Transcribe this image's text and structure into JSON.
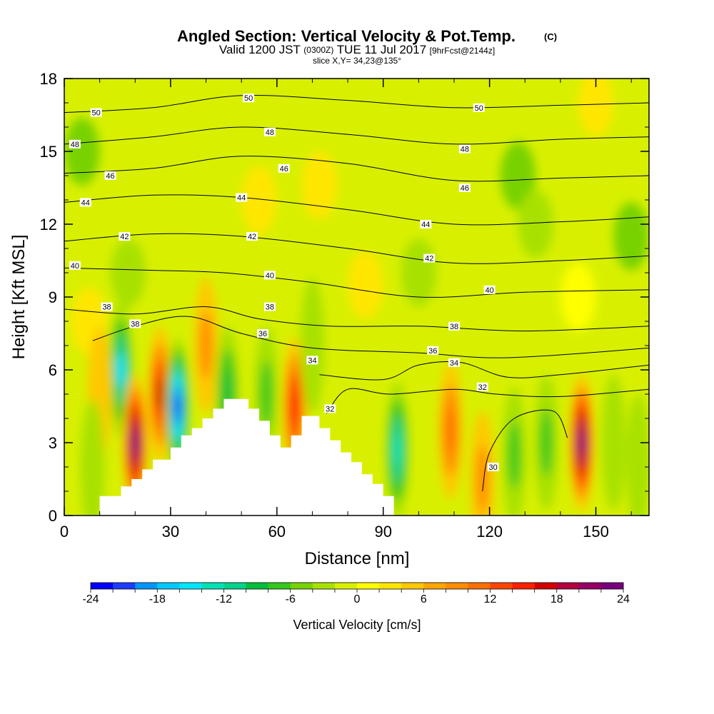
{
  "chart_data": {
    "type": "heatmap",
    "title": "Angled Section: Vertical Velocity & Pot.Temp.",
    "title_mark": "(C)",
    "subtitle": {
      "part1": "Valid 1200 JST",
      "part2": "(0300Z)",
      "part3": "TUE 11 Jul 2017",
      "part4": "[9hrFcst@2144z]"
    },
    "slice_label": "slice X,Y= 34,23@135°",
    "xlabel": "Distance [nm]",
    "ylabel": "Height [Kft MSL]",
    "xlim": [
      0,
      165
    ],
    "ylim": [
      0,
      18
    ],
    "x_ticks": [
      0,
      30,
      60,
      90,
      120,
      150
    ],
    "y_ticks": [
      0,
      3,
      6,
      9,
      12,
      15,
      18
    ],
    "colorbar": {
      "label": "Vertical Velocity [cm/s]",
      "ticks": [
        -24,
        -18,
        -12,
        -6,
        0,
        6,
        12,
        18,
        24
      ],
      "colors": [
        "#0000ff",
        "#1e3cff",
        "#0096ff",
        "#00c8ff",
        "#00e6ff",
        "#00e1b4",
        "#00d28c",
        "#00be3c",
        "#32c81e",
        "#78d200",
        "#a8e100",
        "#d8f000",
        "#ffff00",
        "#ffe600",
        "#ffc800",
        "#ffa500",
        "#ff8c00",
        "#ff6e00",
        "#ff4600",
        "#ff1e00",
        "#d20000",
        "#b4003c",
        "#960064",
        "#78007d"
      ]
    },
    "field": {
      "background_value": -1,
      "upper_values": [
        {
          "x": 5,
          "y": 15,
          "value": -6
        },
        {
          "x": 55,
          "y": 13,
          "value": 2
        },
        {
          "x": 72,
          "y": 13.6,
          "value": 2
        },
        {
          "x": 150,
          "y": 17,
          "value": 2
        },
        {
          "x": 128,
          "y": 14,
          "value": -5
        },
        {
          "x": 100,
          "y": 10,
          "value": -4
        },
        {
          "x": 133,
          "y": 12,
          "value": -4
        },
        {
          "x": 160,
          "y": 11.5,
          "value": -5
        },
        {
          "x": 18,
          "y": 10,
          "value": -3
        },
        {
          "x": 85,
          "y": 9.5,
          "value": 2
        },
        {
          "x": 145,
          "y": 9,
          "value": 1
        },
        {
          "x": 7,
          "y": 8,
          "value": 3
        }
      ],
      "cells": [
        {
          "x": 16,
          "y": 6,
          "value": -16
        },
        {
          "x": 20,
          "y": 3,
          "value": 24
        },
        {
          "x": 27,
          "y": 5,
          "value": 16
        },
        {
          "x": 32,
          "y": 4.5,
          "value": -22
        },
        {
          "x": 40,
          "y": 7,
          "value": 8
        },
        {
          "x": 46,
          "y": 5,
          "value": -10
        },
        {
          "x": 57,
          "y": 5,
          "value": -8
        },
        {
          "x": 65,
          "y": 4.5,
          "value": 14
        },
        {
          "x": 70,
          "y": 7,
          "value": -4
        },
        {
          "x": 94,
          "y": 2.7,
          "value": -14
        },
        {
          "x": 109,
          "y": 3.5,
          "value": 10
        },
        {
          "x": 127,
          "y": 2.5,
          "value": -9
        },
        {
          "x": 136,
          "y": 3,
          "value": -8
        },
        {
          "x": 146,
          "y": 3,
          "value": 24
        },
        {
          "x": 155,
          "y": 3,
          "value": -4
        },
        {
          "x": 10,
          "y": 5,
          "value": 4
        },
        {
          "x": 162,
          "y": 2.2,
          "value": -5
        },
        {
          "x": 8,
          "y": 2,
          "value": -5
        },
        {
          "x": 118,
          "y": 1.5,
          "value": 8
        }
      ]
    },
    "terrain": [
      [
        0,
        0
      ],
      [
        10,
        0
      ],
      [
        10,
        0.8
      ],
      [
        16,
        0.8
      ],
      [
        16,
        1.2
      ],
      [
        19,
        1.2
      ],
      [
        19,
        1.5
      ],
      [
        22,
        1.5
      ],
      [
        22,
        1.9
      ],
      [
        25,
        1.9
      ],
      [
        25,
        2.3
      ],
      [
        30,
        2.3
      ],
      [
        30,
        2.8
      ],
      [
        33,
        2.8
      ],
      [
        33,
        3.3
      ],
      [
        36,
        3.3
      ],
      [
        36,
        3.6
      ],
      [
        39,
        3.6
      ],
      [
        39,
        4.0
      ],
      [
        42,
        4.0
      ],
      [
        42,
        4.4
      ],
      [
        45,
        4.4
      ],
      [
        45,
        4.8
      ],
      [
        52,
        4.8
      ],
      [
        52,
        4.4
      ],
      [
        55,
        4.4
      ],
      [
        55,
        3.9
      ],
      [
        58,
        3.9
      ],
      [
        58,
        3.3
      ],
      [
        61,
        3.3
      ],
      [
        61,
        2.8
      ],
      [
        64,
        2.8
      ],
      [
        64,
        3.3
      ],
      [
        67,
        3.3
      ],
      [
        67,
        4.1
      ],
      [
        72,
        4.1
      ],
      [
        72,
        3.6
      ],
      [
        75,
        3.6
      ],
      [
        75,
        3.1
      ],
      [
        78,
        3.1
      ],
      [
        78,
        2.6
      ],
      [
        81,
        2.6
      ],
      [
        81,
        2.2
      ],
      [
        84,
        2.2
      ],
      [
        84,
        1.7
      ],
      [
        87,
        1.7
      ],
      [
        87,
        1.3
      ],
      [
        90,
        1.3
      ],
      [
        90,
        0.8
      ],
      [
        93,
        0.8
      ],
      [
        93,
        0
      ],
      [
        165,
        0
      ]
    ],
    "isentropes": [
      {
        "theta": 50,
        "points": [
          [
            0,
            16.6
          ],
          [
            25,
            16.8
          ],
          [
            50,
            17.3
          ],
          [
            80,
            17.1
          ],
          [
            110,
            16.8
          ],
          [
            140,
            16.9
          ],
          [
            165,
            17.0
          ]
        ]
      },
      {
        "theta": 48,
        "points": [
          [
            0,
            15.3
          ],
          [
            25,
            15.6
          ],
          [
            50,
            16.0
          ],
          [
            80,
            15.7
          ],
          [
            110,
            15.3
          ],
          [
            140,
            15.5
          ],
          [
            165,
            15.6
          ]
        ]
      },
      {
        "theta": 46,
        "points": [
          [
            0,
            14.1
          ],
          [
            25,
            14.3
          ],
          [
            50,
            14.8
          ],
          [
            80,
            14.5
          ],
          [
            110,
            13.8
          ],
          [
            140,
            13.9
          ],
          [
            165,
            14.0
          ]
        ]
      },
      {
        "theta": 44,
        "points": [
          [
            0,
            12.9
          ],
          [
            25,
            13.2
          ],
          [
            50,
            13.1
          ],
          [
            80,
            12.6
          ],
          [
            110,
            12.0
          ],
          [
            140,
            12.1
          ],
          [
            165,
            12.3
          ]
        ]
      },
      {
        "theta": 42,
        "points": [
          [
            0,
            11.3
          ],
          [
            25,
            11.6
          ],
          [
            50,
            11.5
          ],
          [
            80,
            11.0
          ],
          [
            110,
            10.4
          ],
          [
            140,
            10.5
          ],
          [
            165,
            10.7
          ]
        ]
      },
      {
        "theta": 40,
        "points": [
          [
            0,
            10.2
          ],
          [
            25,
            10.1
          ],
          [
            45,
            10.0
          ],
          [
            70,
            9.6
          ],
          [
            100,
            9.0
          ],
          [
            130,
            9.2
          ],
          [
            165,
            9.3
          ]
        ]
      },
      {
        "theta": 38,
        "points": [
          [
            0,
            8.5
          ],
          [
            20,
            8.3
          ],
          [
            40,
            8.6
          ],
          [
            55,
            8.1
          ],
          [
            75,
            7.8
          ],
          [
            100,
            7.8
          ],
          [
            130,
            7.6
          ],
          [
            165,
            7.8
          ]
        ]
      },
      {
        "theta": 36,
        "points": [
          [
            8,
            7.2
          ],
          [
            20,
            7.8
          ],
          [
            35,
            8.2
          ],
          [
            50,
            7.5
          ],
          [
            70,
            6.9
          ],
          [
            100,
            6.7
          ],
          [
            125,
            6.5
          ],
          [
            165,
            6.9
          ]
        ]
      },
      {
        "theta": 34,
        "points": [
          [
            72,
            5.8
          ],
          [
            90,
            5.6
          ],
          [
            100,
            6.2
          ],
          [
            112,
            6.3
          ],
          [
            125,
            5.7
          ],
          [
            140,
            5.8
          ],
          [
            165,
            6.2
          ]
        ]
      },
      {
        "theta": 32,
        "points": [
          [
            74,
            4.2
          ],
          [
            80,
            5.2
          ],
          [
            92,
            5.0
          ],
          [
            110,
            5.2
          ],
          [
            122,
            5.0
          ],
          [
            140,
            4.9
          ],
          [
            165,
            5.2
          ]
        ]
      },
      {
        "theta": 30,
        "points": [
          [
            118,
            1.0
          ],
          [
            120,
            2.6
          ],
          [
            127,
            4.0
          ],
          [
            138,
            4.3
          ],
          [
            142,
            3.2
          ]
        ]
      }
    ],
    "isentrope_labels": [
      {
        "text": "50",
        "x": 9,
        "y": 16.6
      },
      {
        "text": "50",
        "x": 52,
        "y": 17.2
      },
      {
        "text": "50",
        "x": 117,
        "y": 16.8
      },
      {
        "text": "48",
        "x": 3,
        "y": 15.3
      },
      {
        "text": "48",
        "x": 58,
        "y": 15.8
      },
      {
        "text": "48",
        "x": 113,
        "y": 15.1
      },
      {
        "text": "46",
        "x": 13,
        "y": 14.0
      },
      {
        "text": "46",
        "x": 62,
        "y": 14.3
      },
      {
        "text": "46",
        "x": 113,
        "y": 13.5
      },
      {
        "text": "44",
        "x": 6,
        "y": 12.9
      },
      {
        "text": "44",
        "x": 50,
        "y": 13.1
      },
      {
        "text": "44",
        "x": 102,
        "y": 12.0
      },
      {
        "text": "42",
        "x": 17,
        "y": 11.5
      },
      {
        "text": "42",
        "x": 53,
        "y": 11.5
      },
      {
        "text": "42",
        "x": 103,
        "y": 10.6
      },
      {
        "text": "40",
        "x": 3,
        "y": 10.3
      },
      {
        "text": "40",
        "x": 58,
        "y": 9.9
      },
      {
        "text": "40",
        "x": 120,
        "y": 9.3
      },
      {
        "text": "38",
        "x": 12,
        "y": 8.6
      },
      {
        "text": "38",
        "x": 20,
        "y": 7.9
      },
      {
        "text": "38",
        "x": 58,
        "y": 8.6
      },
      {
        "text": "38",
        "x": 110,
        "y": 7.8
      },
      {
        "text": "36",
        "x": 56,
        "y": 7.5
      },
      {
        "text": "36",
        "x": 104,
        "y": 6.8
      },
      {
        "text": "34",
        "x": 70,
        "y": 6.4
      },
      {
        "text": "34",
        "x": 110,
        "y": 6.3
      },
      {
        "text": "32",
        "x": 75,
        "y": 4.4
      },
      {
        "text": "32",
        "x": 118,
        "y": 5.3
      },
      {
        "text": "30",
        "x": 121,
        "y": 2.0
      }
    ]
  }
}
